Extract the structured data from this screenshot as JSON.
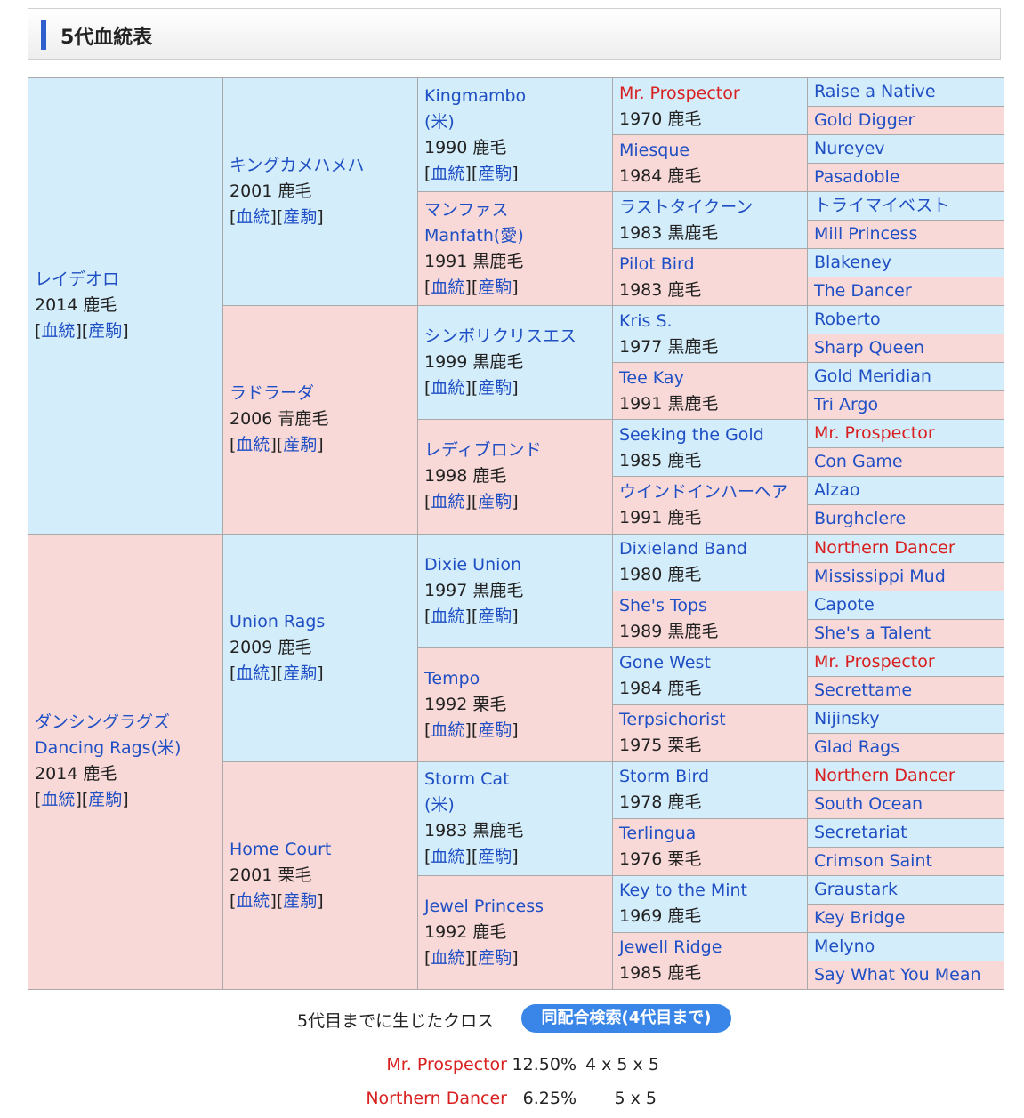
{
  "title": "5代血統表",
  "link_labels": {
    "pedigree": "血統",
    "offspring": "産駒"
  },
  "gen1": [
    {
      "name": "レイデオロ",
      "info": "2014 鹿毛",
      "links": true,
      "sex": "m"
    },
    {
      "name": "ダンシングラグズ",
      "name2": "Dancing Rags(米)",
      "info": "2014 鹿毛",
      "links": true,
      "sex": "f"
    }
  ],
  "gen2": [
    {
      "name": "キングカメハメハ",
      "info": "2001 鹿毛",
      "links": true,
      "sex": "m"
    },
    {
      "name": "ラドラーダ",
      "info": "2006 青鹿毛",
      "links": true,
      "sex": "f"
    },
    {
      "name": "Union Rags",
      "info": "2009 鹿毛",
      "links": true,
      "sex": "m"
    },
    {
      "name": "Home Court",
      "info": "2001 栗毛",
      "links": true,
      "sex": "f"
    }
  ],
  "gen3": [
    {
      "name": "Kingmambo",
      "name2": "(米)",
      "info": "1990 鹿毛",
      "links": true,
      "sex": "m"
    },
    {
      "name": "マンファス",
      "name2": "Manfath(愛)",
      "info": "1991 黒鹿毛",
      "links": true,
      "sex": "f"
    },
    {
      "name": "シンボリクリスエス",
      "info": "1999 黒鹿毛",
      "links": true,
      "sex": "m"
    },
    {
      "name": "レディブロンド",
      "info": "1998 鹿毛",
      "links": true,
      "sex": "f"
    },
    {
      "name": "Dixie Union",
      "info": "1997 黒鹿毛",
      "links": true,
      "sex": "m"
    },
    {
      "name": "Tempo",
      "info": "1992 栗毛",
      "links": true,
      "sex": "f"
    },
    {
      "name": "Storm Cat",
      "name2": "(米)",
      "info": "1983 黒鹿毛",
      "links": true,
      "sex": "m"
    },
    {
      "name": "Jewel Princess",
      "info": "1992 鹿毛",
      "links": true,
      "sex": "f"
    }
  ],
  "gen4": [
    {
      "name": "Mr. Prospector",
      "info": "1970 鹿毛",
      "sex": "m",
      "red": true
    },
    {
      "name": "Miesque",
      "info": "1984 鹿毛",
      "sex": "f"
    },
    {
      "name": "ラストタイクーン",
      "info": "1983 黒鹿毛",
      "sex": "m"
    },
    {
      "name": "Pilot Bird",
      "info": "1983 鹿毛",
      "sex": "f"
    },
    {
      "name": "Kris S.",
      "info": "1977 黒鹿毛",
      "sex": "m"
    },
    {
      "name": "Tee Kay",
      "info": "1991 黒鹿毛",
      "sex": "f"
    },
    {
      "name": "Seeking the Gold",
      "info": "1985 鹿毛",
      "sex": "m"
    },
    {
      "name": "ウインドインハーヘア",
      "info": "1991 鹿毛",
      "sex": "f"
    },
    {
      "name": "Dixieland Band",
      "info": "1980 鹿毛",
      "sex": "m"
    },
    {
      "name": "She's Tops",
      "info": "1989 黒鹿毛",
      "sex": "f"
    },
    {
      "name": "Gone West",
      "info": "1984 鹿毛",
      "sex": "m"
    },
    {
      "name": "Terpsichorist",
      "info": "1975 栗毛",
      "sex": "f"
    },
    {
      "name": "Storm Bird",
      "info": "1978 鹿毛",
      "sex": "m"
    },
    {
      "name": "Terlingua",
      "info": "1976 栗毛",
      "sex": "f"
    },
    {
      "name": "Key to the Mint",
      "info": "1969 鹿毛",
      "sex": "m"
    },
    {
      "name": "Jewell Ridge",
      "info": "1985 鹿毛",
      "sex": "f"
    }
  ],
  "gen5": [
    {
      "name": "Raise a Native",
      "sex": "m"
    },
    {
      "name": "Gold Digger",
      "sex": "f"
    },
    {
      "name": "Nureyev",
      "sex": "m"
    },
    {
      "name": "Pasadoble",
      "sex": "f"
    },
    {
      "name": "トライマイベスト",
      "sex": "m"
    },
    {
      "name": "Mill Princess",
      "sex": "f"
    },
    {
      "name": "Blakeney",
      "sex": "m"
    },
    {
      "name": "The Dancer",
      "sex": "f"
    },
    {
      "name": "Roberto",
      "sex": "m"
    },
    {
      "name": "Sharp Queen",
      "sex": "f"
    },
    {
      "name": "Gold Meridian",
      "sex": "m"
    },
    {
      "name": "Tri Argo",
      "sex": "f"
    },
    {
      "name": "Mr. Prospector",
      "sex": "m",
      "red": true
    },
    {
      "name": "Con Game",
      "sex": "f"
    },
    {
      "name": "Alzao",
      "sex": "m"
    },
    {
      "name": "Burghclere",
      "sex": "f"
    },
    {
      "name": "Northern Dancer",
      "sex": "m",
      "red": true
    },
    {
      "name": "Mississippi Mud",
      "sex": "f"
    },
    {
      "name": "Capote",
      "sex": "m"
    },
    {
      "name": "She's a Talent",
      "sex": "f"
    },
    {
      "name": "Mr. Prospector",
      "sex": "m",
      "red": true
    },
    {
      "name": "Secrettame",
      "sex": "f"
    },
    {
      "name": "Nijinsky",
      "sex": "m"
    },
    {
      "name": "Glad Rags",
      "sex": "f"
    },
    {
      "name": "Northern Dancer",
      "sex": "m",
      "red": true
    },
    {
      "name": "South Ocean",
      "sex": "f"
    },
    {
      "name": "Secretariat",
      "sex": "m"
    },
    {
      "name": "Crimson Saint",
      "sex": "f"
    },
    {
      "name": "Graustark",
      "sex": "m"
    },
    {
      "name": "Key Bridge",
      "sex": "f"
    },
    {
      "name": "Melyno",
      "sex": "m"
    },
    {
      "name": "Say What You Mean",
      "sex": "f"
    }
  ],
  "cross": {
    "label": "5代目までに生じたクロス",
    "button": "同配合検索(4代目まで)",
    "items": [
      {
        "name": "Mr. Prospector",
        "percent": "12.50%",
        "gens": "4 x 5 x 5"
      },
      {
        "name": "Northern Dancer",
        "percent": "6.25%",
        "gens": "5 x 5"
      }
    ]
  }
}
